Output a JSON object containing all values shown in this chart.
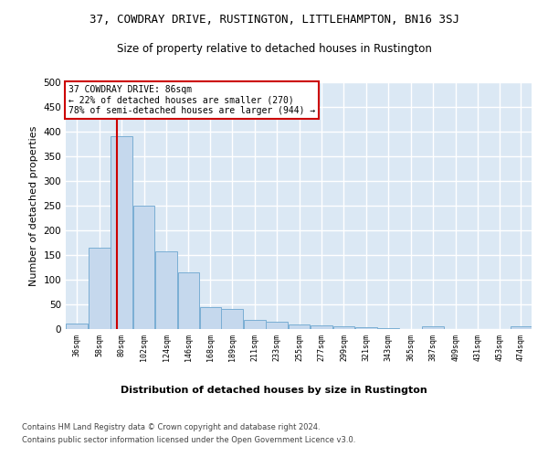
{
  "title": "37, COWDRAY DRIVE, RUSTINGTON, LITTLEHAMPTON, BN16 3SJ",
  "subtitle": "Size of property relative to detached houses in Rustington",
  "xlabel_bottom": "Distribution of detached houses by size in Rustington",
  "ylabel": "Number of detached properties",
  "bar_color": "#c5d8ed",
  "bar_edge_color": "#7aaed4",
  "plot_bg_color": "#dbe8f4",
  "fig_bg_color": "#ffffff",
  "grid_color": "#ffffff",
  "annotation_text": "37 COWDRAY DRIVE: 86sqm\n← 22% of detached houses are smaller (270)\n78% of semi-detached houses are larger (944) →",
  "annotation_box_edge_color": "#cc0000",
  "vline_x": 86,
  "vline_color": "#cc0000",
  "footer_line1": "Contains HM Land Registry data © Crown copyright and database right 2024.",
  "footer_line2": "Contains public sector information licensed under the Open Government Licence v3.0.",
  "bin_left_edges": [
    36,
    58,
    80,
    102,
    124,
    146,
    168,
    189,
    211,
    233,
    255,
    277,
    299,
    321,
    343,
    365,
    387,
    409,
    431,
    453,
    474
  ],
  "bar_heights": [
    12,
    165,
    390,
    250,
    158,
    115,
    44,
    40,
    18,
    15,
    10,
    8,
    5,
    3,
    2,
    0,
    5,
    0,
    0,
    0,
    5
  ],
  "tick_labels": [
    "36sqm",
    "58sqm",
    "80sqm",
    "102sqm",
    "124sqm",
    "146sqm",
    "168sqm",
    "189sqm",
    "211sqm",
    "233sqm",
    "255sqm",
    "277sqm",
    "299sqm",
    "321sqm",
    "343sqm",
    "365sqm",
    "387sqm",
    "409sqm",
    "431sqm",
    "453sqm",
    "474sqm"
  ],
  "ylim": [
    0,
    500
  ],
  "yticks": [
    0,
    50,
    100,
    150,
    200,
    250,
    300,
    350,
    400,
    450,
    500
  ],
  "figsize": [
    6.0,
    5.0
  ],
  "dpi": 100
}
